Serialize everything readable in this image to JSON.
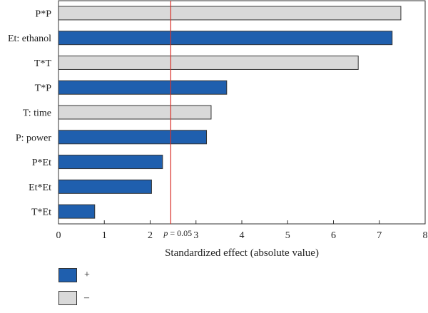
{
  "chart_data": {
    "type": "bar",
    "orientation": "horizontal",
    "categories": [
      "P*P",
      "Et: ethanol",
      "T*T",
      "T*P",
      "T: time",
      "P: power",
      "P*Et",
      "Et*Et",
      "T*Et"
    ],
    "values": [
      7.47,
      7.28,
      6.54,
      3.67,
      3.33,
      3.23,
      2.27,
      2.03,
      0.79
    ],
    "signs": [
      "-",
      "+",
      "-",
      "+",
      "-",
      "+",
      "+",
      "+",
      "+"
    ],
    "xlabel": "Standardized effect (absolute value)",
    "xlim": [
      0,
      8
    ],
    "xticks": [
      "0",
      "1",
      "2",
      "3",
      "4",
      "5",
      "6",
      "7",
      "8"
    ],
    "reference_line": {
      "value": 2.45,
      "label_italic": "p",
      "label_rest": " = 0.05",
      "color": "#d9332b"
    },
    "colors": {
      "positive": "#1f5fae",
      "negative": "#d9d9d9"
    },
    "legend": [
      {
        "label": "+",
        "color": "#1f5fae"
      },
      {
        "label": "–",
        "color": "#d9d9d9"
      }
    ]
  }
}
